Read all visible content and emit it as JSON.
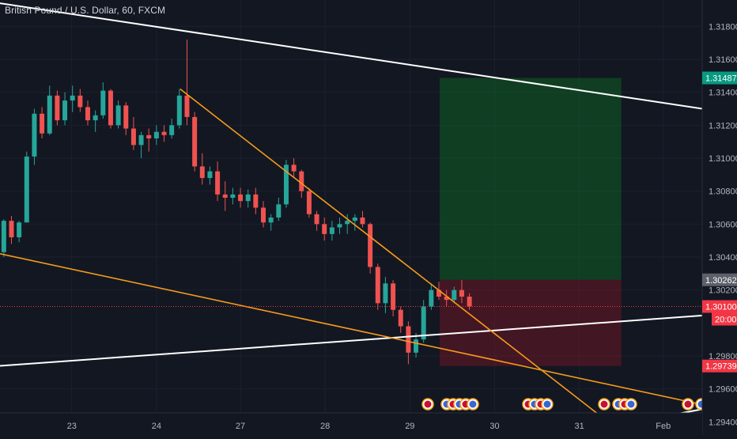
{
  "chart_data": {
    "type": "candlestick",
    "title": "British Pound / U.S. Dollar, 60, FXCM",
    "y_ticks": [
      "1.31800",
      "1.31600",
      "1.31400",
      "1.31200",
      "1.31000",
      "1.30800",
      "1.30600",
      "1.30400",
      "1.30200",
      "1.29800",
      "1.29600",
      "1.29400"
    ],
    "x_ticks": [
      {
        "label": "23",
        "index": 9.4
      },
      {
        "label": "24",
        "index": 20.5
      },
      {
        "label": "27",
        "index": 31.5
      },
      {
        "label": "28",
        "index": 42.6
      },
      {
        "label": "29",
        "index": 53.7
      },
      {
        "label": "30",
        "index": 64.8
      },
      {
        "label": "31",
        "index": 75.9
      },
      {
        "label": "Feb",
        "index": 86.9
      }
    ],
    "ylim": [
      1.2932,
      1.3196
    ],
    "xlim": [
      0,
      92
    ],
    "price_tags": {
      "target": {
        "label": "1.31487",
        "value": 1.31487,
        "color": "#089981"
      },
      "entry": {
        "label": "1.30262",
        "value": 1.30262,
        "color": "#5d606b"
      },
      "current": {
        "label": "1.30100",
        "value": 1.301,
        "color": "#f23645"
      },
      "countdown": "20:00",
      "stop": {
        "label": "1.29739",
        "value": 1.29739,
        "color": "#f23645"
      }
    },
    "position": {
      "start": 57.6,
      "end": 81.4,
      "entry": 1.30262,
      "target": 1.31487,
      "stop": 1.29739
    },
    "trendlines": [
      {
        "name": "upper-channel",
        "color": "#ffffff",
        "points": [
          [
            0,
            1.3194
          ],
          [
            93.5,
            1.3129
          ]
        ]
      },
      {
        "name": "lower-channel",
        "color": "#ffffff",
        "points": [
          [
            0,
            1.2974
          ],
          [
            93.5,
            1.3005
          ]
        ]
      },
      {
        "name": "falling-resistance",
        "color": "#f59b1b",
        "points": [
          [
            23.6,
            1.3142
          ],
          [
            80.5,
            1.2937
          ]
        ]
      },
      {
        "name": "falling-support",
        "color": "#f59b1b",
        "points": [
          [
            0,
            1.3042
          ],
          [
            93.5,
            1.2949
          ]
        ]
      },
      {
        "name": "rising-line",
        "color": "#ffffff",
        "points": [
          [
            74,
            1.2932
          ],
          [
            93.5,
            1.2949
          ]
        ]
      }
    ],
    "candles": [
      [
        1.3043,
        1.3063,
        1.304,
        1.3062
      ],
      [
        1.3062,
        1.3065,
        1.3048,
        1.3052
      ],
      [
        1.3052,
        1.3062,
        1.3049,
        1.3061
      ],
      [
        1.3061,
        1.3104,
        1.3061,
        1.3101
      ],
      [
        1.3101,
        1.313,
        1.3096,
        1.3127
      ],
      [
        1.3127,
        1.3131,
        1.3112,
        1.3115
      ],
      [
        1.3115,
        1.3144,
        1.3114,
        1.3138
      ],
      [
        1.3138,
        1.3141,
        1.312,
        1.3123
      ],
      [
        1.3123,
        1.314,
        1.312,
        1.3135
      ],
      [
        1.3135,
        1.3144,
        1.3128,
        1.3138
      ],
      [
        1.3138,
        1.3142,
        1.3128,
        1.3131
      ],
      [
        1.3131,
        1.3135,
        1.312,
        1.3123
      ],
      [
        1.3123,
        1.3129,
        1.3116,
        1.3126
      ],
      [
        1.3126,
        1.3146,
        1.3124,
        1.3141
      ],
      [
        1.3141,
        1.3142,
        1.3118,
        1.312
      ],
      [
        1.312,
        1.3135,
        1.3118,
        1.3132
      ],
      [
        1.3132,
        1.3134,
        1.3114,
        1.3118
      ],
      [
        1.3118,
        1.3125,
        1.3105,
        1.3108
      ],
      [
        1.3108,
        1.3116,
        1.31,
        1.3114
      ],
      [
        1.3114,
        1.3118,
        1.3104,
        1.3112
      ],
      [
        1.3112,
        1.312,
        1.3108,
        1.3116
      ],
      [
        1.3116,
        1.312,
        1.311,
        1.3114
      ],
      [
        1.3114,
        1.3124,
        1.3112,
        1.312
      ],
      [
        1.312,
        1.3142,
        1.3118,
        1.3138
      ],
      [
        1.3138,
        1.3172,
        1.312,
        1.3125
      ],
      [
        1.3125,
        1.3128,
        1.3092,
        1.3095
      ],
      [
        1.3095,
        1.3103,
        1.3084,
        1.3088
      ],
      [
        1.3088,
        1.3095,
        1.3084,
        1.3092
      ],
      [
        1.3092,
        1.3098,
        1.3074,
        1.3078
      ],
      [
        1.3078,
        1.3086,
        1.3068,
        1.3076
      ],
      [
        1.3076,
        1.3082,
        1.3072,
        1.3078
      ],
      [
        1.3078,
        1.3082,
        1.307,
        1.3074
      ],
      [
        1.3074,
        1.3081,
        1.307,
        1.3078
      ],
      [
        1.3078,
        1.3082,
        1.3066,
        1.307
      ],
      [
        1.307,
        1.3074,
        1.3058,
        1.3061
      ],
      [
        1.3061,
        1.3066,
        1.3056,
        1.3064
      ],
      [
        1.3064,
        1.3076,
        1.3062,
        1.3072
      ],
      [
        1.3072,
        1.3099,
        1.307,
        1.3096
      ],
      [
        1.3096,
        1.31,
        1.3088,
        1.3092
      ],
      [
        1.3092,
        1.3093,
        1.3076,
        1.308
      ],
      [
        1.308,
        1.3082,
        1.3064,
        1.3066
      ],
      [
        1.3066,
        1.3068,
        1.3056,
        1.306
      ],
      [
        1.306,
        1.3064,
        1.305,
        1.3054
      ],
      [
        1.3054,
        1.3062,
        1.305,
        1.3058
      ],
      [
        1.3058,
        1.3064,
        1.3054,
        1.306
      ],
      [
        1.306,
        1.3066,
        1.3054,
        1.3062
      ],
      [
        1.3062,
        1.3066,
        1.3056,
        1.3064
      ],
      [
        1.3064,
        1.3068,
        1.3058,
        1.306
      ],
      [
        1.306,
        1.3061,
        1.303,
        1.3034
      ],
      [
        1.3034,
        1.3036,
        1.3008,
        1.3012
      ],
      [
        1.3012,
        1.3028,
        1.3006,
        1.3024
      ],
      [
        1.3024,
        1.3026,
        1.3004,
        1.3008
      ],
      [
        1.3008,
        1.301,
        1.2994,
        1.2998
      ],
      [
        1.2998,
        1.3001,
        1.2975,
        1.2982
      ],
      [
        1.2982,
        1.2994,
        1.2979,
        1.299
      ],
      [
        1.299,
        1.3014,
        1.2988,
        1.301
      ],
      [
        1.301,
        1.3024,
        1.3008,
        1.302
      ],
      [
        1.302,
        1.3025,
        1.3014,
        1.3016
      ],
      [
        1.3016,
        1.302,
        1.301,
        1.3014
      ],
      [
        1.3014,
        1.3022,
        1.3012,
        1.302
      ],
      [
        1.302,
        1.3026,
        1.3012,
        1.3016
      ],
      [
        1.3016,
        1.3018,
        1.3008,
        1.301
      ]
    ]
  }
}
